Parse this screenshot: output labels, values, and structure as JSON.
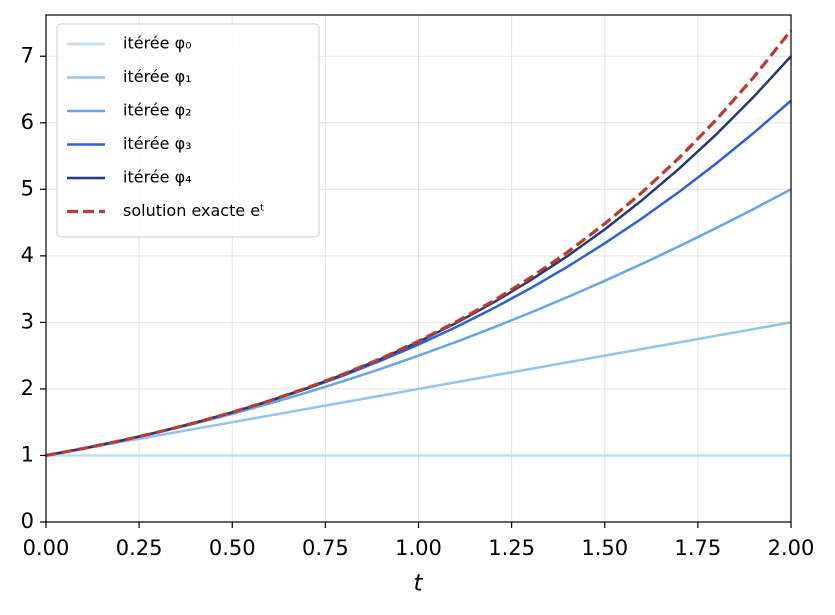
{
  "chart_data": {
    "type": "line",
    "x_label": "t",
    "x": [
      0,
      0.1,
      0.2,
      0.3,
      0.4,
      0.5,
      0.6,
      0.7,
      0.8,
      0.9,
      1.0,
      1.1,
      1.2,
      1.3,
      1.4,
      1.5,
      1.6,
      1.7,
      1.8,
      1.9,
      2.0
    ],
    "series": [
      {
        "name": "itérée φ₀",
        "color": "#bbdefb",
        "linestyle": "solid",
        "values": [
          1,
          1,
          1,
          1,
          1,
          1,
          1,
          1,
          1,
          1,
          1,
          1,
          1,
          1,
          1,
          1,
          1,
          1,
          1,
          1,
          1
        ]
      },
      {
        "name": "itérée φ₁",
        "color": "#90c4f7",
        "linestyle": "solid",
        "values": [
          1,
          1.1,
          1.2,
          1.3,
          1.4,
          1.5,
          1.6,
          1.7,
          1.8,
          1.9,
          2,
          2.1,
          2.2,
          2.3,
          2.4,
          2.5,
          2.6,
          2.7,
          2.8,
          2.9,
          3
        ]
      },
      {
        "name": "itérée φ₂",
        "color": "#62a6f0",
        "linestyle": "solid",
        "values": [
          1,
          1.105,
          1.22,
          1.345,
          1.48,
          1.625,
          1.78,
          1.945,
          2.12,
          2.305,
          2.5,
          2.705,
          2.92,
          3.145,
          3.38,
          3.625,
          3.88,
          4.145,
          4.42,
          4.705,
          5
        ]
      },
      {
        "name": "itérée φ₃",
        "color": "#2a62db",
        "linestyle": "solid",
        "values": [
          1,
          1.105,
          1.221,
          1.35,
          1.491,
          1.646,
          1.816,
          2.002,
          2.205,
          2.427,
          2.667,
          2.927,
          3.208,
          3.511,
          3.837,
          4.188,
          4.563,
          4.964,
          5.392,
          5.848,
          6.333
        ]
      },
      {
        "name": "itérée φ₄",
        "color": "#1f3a7d",
        "linestyle": "solid",
        "values": [
          1,
          1.105,
          1.221,
          1.35,
          1.492,
          1.648,
          1.821,
          2.012,
          2.222,
          2.454,
          2.708,
          2.988,
          3.294,
          3.63,
          3.997,
          4.398,
          4.836,
          5.312,
          5.829,
          6.391,
          7
        ]
      },
      {
        "name": "solution exacte eᵗ",
        "color": "#c0392b",
        "linestyle": "dashed",
        "values": [
          1,
          1.105,
          1.221,
          1.35,
          1.492,
          1.649,
          1.822,
          2.014,
          2.226,
          2.46,
          2.718,
          3.004,
          3.32,
          3.669,
          4.055,
          4.482,
          4.953,
          5.474,
          6.05,
          6.686,
          7.389
        ]
      }
    ],
    "xlim": [
      0,
      2
    ],
    "ylim": [
      0,
      7.62
    ],
    "xticks": [
      {
        "value": 0,
        "label": "0.00"
      },
      {
        "value": 0.25,
        "label": "0.25"
      },
      {
        "value": 0.5,
        "label": "0.50"
      },
      {
        "value": 0.75,
        "label": "0.75"
      },
      {
        "value": 1,
        "label": "1.00"
      },
      {
        "value": 1.25,
        "label": "1.25"
      },
      {
        "value": 1.5,
        "label": "1.50"
      },
      {
        "value": 1.75,
        "label": "1.75"
      },
      {
        "value": 2,
        "label": "2.00"
      }
    ],
    "yticks": [
      0,
      1,
      2,
      3,
      4,
      5,
      6,
      7
    ],
    "grid": true,
    "legend": "upper left"
  }
}
